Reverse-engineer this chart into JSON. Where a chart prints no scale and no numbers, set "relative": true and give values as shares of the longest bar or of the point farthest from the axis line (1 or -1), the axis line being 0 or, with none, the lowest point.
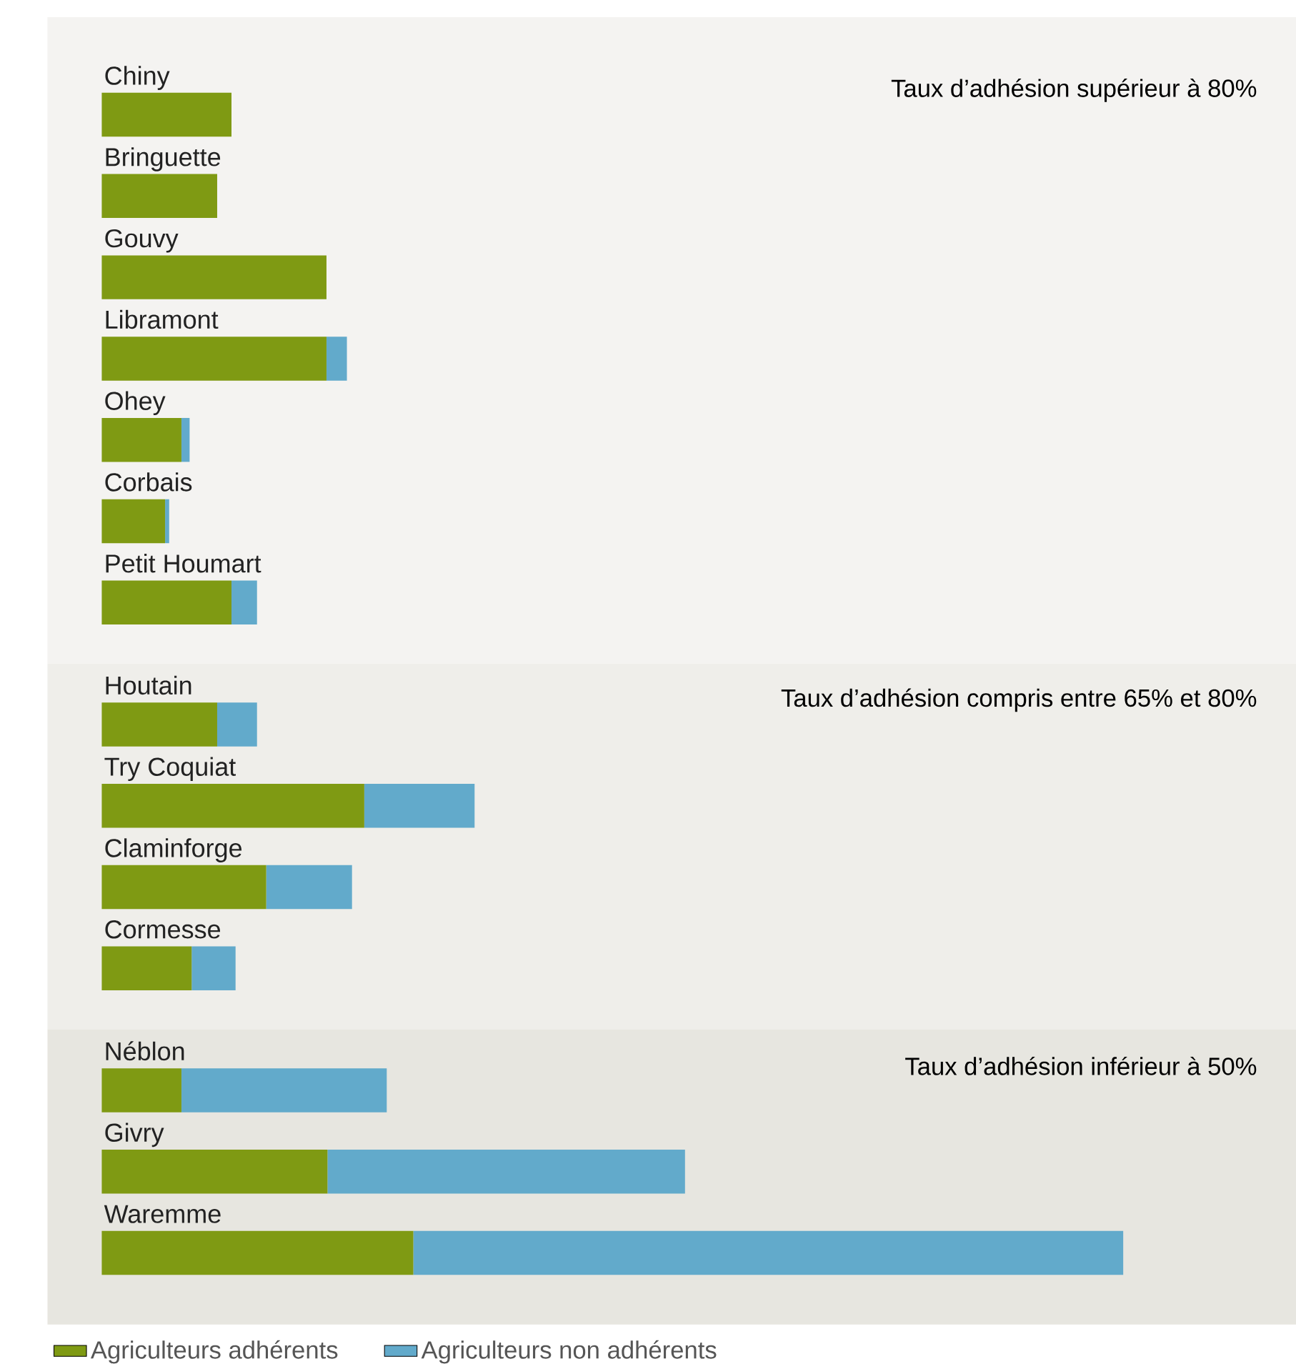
{
  "chart_data": {
    "type": "bar",
    "orientation": "horizontal",
    "stacked": true,
    "relative": true,
    "categories": [
      "Chiny",
      "Bringuette",
      "Gouvy",
      "Libramont",
      "Ohey",
      "Corbais",
      "Petit Houmart",
      "Houtain",
      "Try Coquiat",
      "Claminforge",
      "Cormesse",
      "Néblon",
      "Givry",
      "Waremme"
    ],
    "series": [
      {
        "name": "Agriculteurs adhérents",
        "color": "#7f9a13",
        "values": [
          0.127,
          0.113,
          0.22,
          0.22,
          0.078,
          0.062,
          0.127,
          0.113,
          0.257,
          0.161,
          0.088,
          0.078,
          0.221,
          0.305
        ]
      },
      {
        "name": "Agriculteurs non adhérents",
        "color": "#62aacb",
        "values": [
          0,
          0,
          0,
          0.02,
          0.008,
          0.004,
          0.025,
          0.039,
          0.108,
          0.084,
          0.043,
          0.201,
          0.35,
          0.695
        ]
      }
    ],
    "bands": [
      {
        "axis": "y",
        "from": "Chiny",
        "to": "Petit Houmart",
        "label": "Taux d’adhésion supérieur à 80%",
        "color": "#f4f3f1"
      },
      {
        "axis": "y",
        "from": "Houtain",
        "to": "Cormesse",
        "label": "Taux d’adhésion compris entre 65% et 80%",
        "color": "#efeeea"
      },
      {
        "axis": "y",
        "from": "Néblon",
        "to": "Waremme",
        "label": "Taux d’adhésion inférieur à 50%",
        "color": "#e7e6e0"
      }
    ],
    "legend": "bottom left"
  }
}
